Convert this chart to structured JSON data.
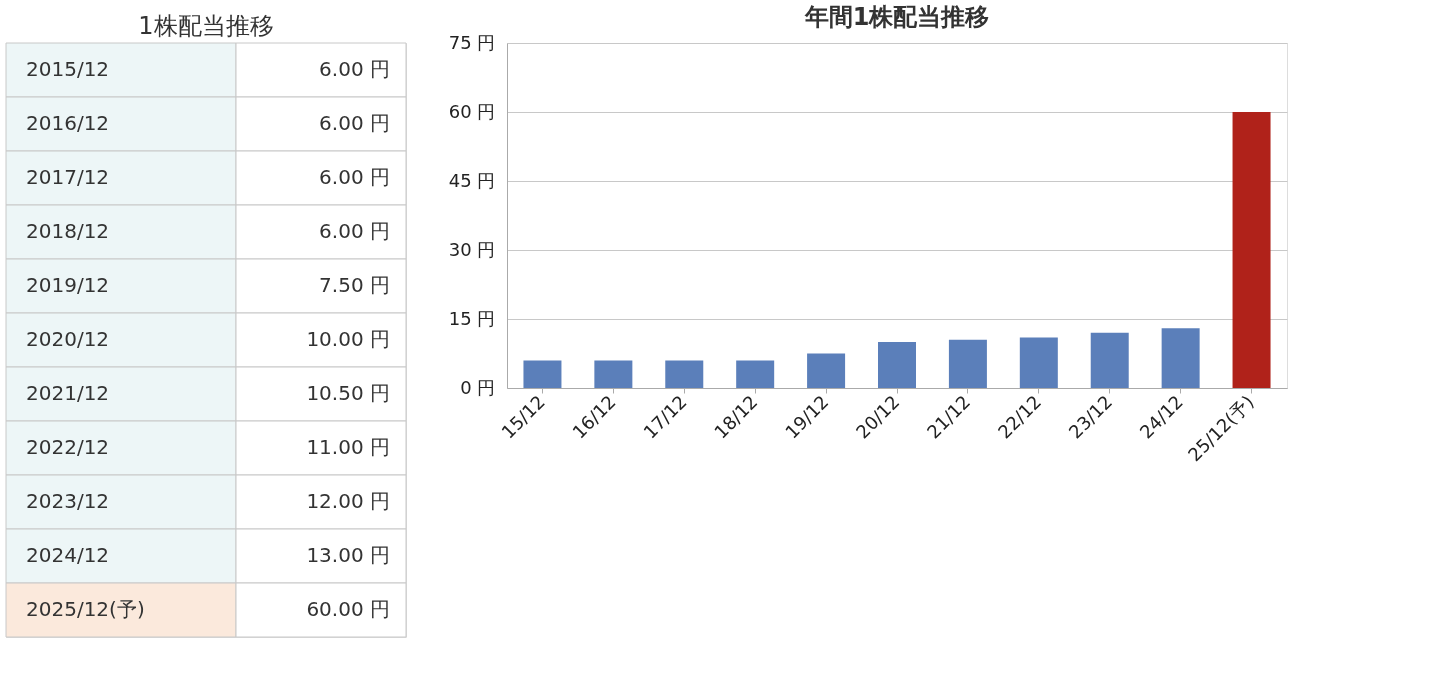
{
  "chart_data": [
    {
      "type": "other",
      "title": "1株配当推移",
      "categories": [
        "2015/12",
        "2016/12",
        "2017/12",
        "2018/12",
        "2019/12",
        "2020/12",
        "2021/12",
        "2022/12",
        "2023/12",
        "2024/12",
        "2025/12(予)"
      ],
      "value_labels": [
        "6.00 円",
        "6.00 円",
        "6.00 円",
        "6.00 円",
        "7.50 円",
        "10.00 円",
        "10.50 円",
        "11.00 円",
        "12.00 円",
        "13.00 円",
        "60.00 円"
      ],
      "colors": [
        "#edf6f7",
        "#edf6f7",
        "#edf6f7",
        "#edf6f7",
        "#edf6f7",
        "#edf6f7",
        "#edf6f7",
        "#edf6f7",
        "#edf6f7",
        "#edf6f7",
        "#fbe9dc"
      ]
    },
    {
      "type": "bar",
      "title": "年間1株配当推移",
      "categories": [
        "15/12",
        "16/12",
        "17/12",
        "18/12",
        "19/12",
        "20/12",
        "21/12",
        "22/12",
        "23/12",
        "24/12",
        "25/12(予)"
      ],
      "values": [
        6,
        6,
        6,
        6,
        7.5,
        10,
        10.5,
        11,
        12,
        13,
        60
      ],
      "colors": [
        "#5b7fba",
        "#5b7fba",
        "#5b7fba",
        "#5b7fba",
        "#5b7fba",
        "#5b7fba",
        "#5b7fba",
        "#5b7fba",
        "#5b7fba",
        "#5b7fba",
        "#b0221a"
      ],
      "ylim": [
        0,
        75
      ],
      "yticks": [
        {
          "value": 0,
          "label": "0 円"
        },
        {
          "value": 15,
          "label": "15 円"
        },
        {
          "value": 30,
          "label": "30 円"
        },
        {
          "value": 45,
          "label": "45 円"
        },
        {
          "value": 60,
          "label": "60 円"
        },
        {
          "value": 75,
          "label": "75 円"
        }
      ],
      "grid": "y"
    }
  ]
}
